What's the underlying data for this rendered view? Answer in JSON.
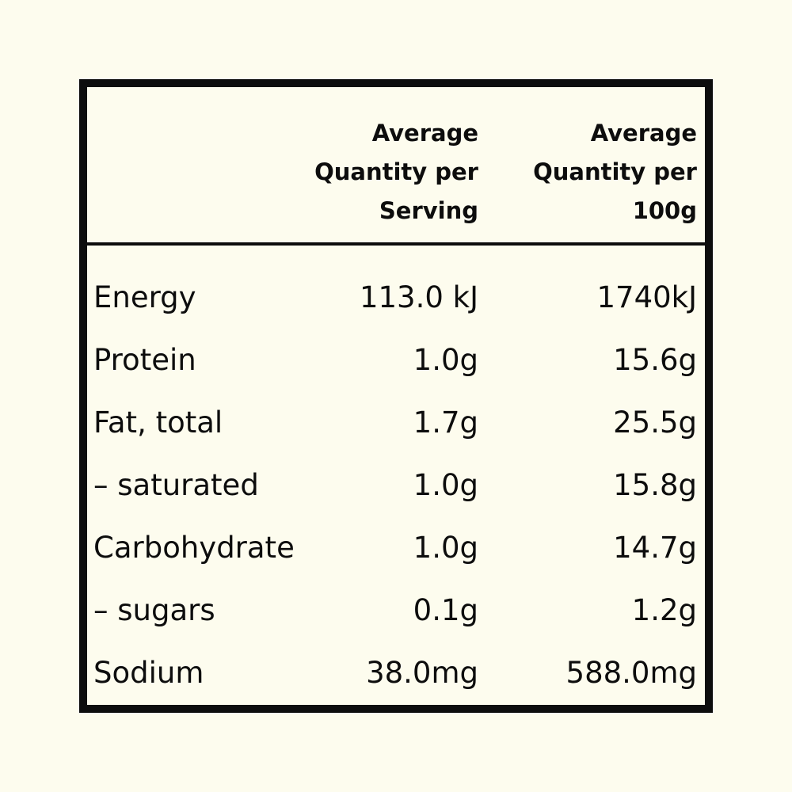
{
  "header": {
    "serving_lines": [
      "Average",
      "Quantity per",
      "Serving"
    ],
    "per100_lines": [
      "Average",
      "Quantity per",
      "100g"
    ]
  },
  "rows": [
    {
      "nutrient": "Energy",
      "per_serving": "113.0 kJ",
      "per_100g": "1740kJ"
    },
    {
      "nutrient": "Protein",
      "per_serving": "1.0g",
      "per_100g": "15.6g"
    },
    {
      "nutrient": "Fat, total",
      "per_serving": "1.7g",
      "per_100g": "25.5g"
    },
    {
      "nutrient": "– saturated",
      "per_serving": "1.0g",
      "per_100g": "15.8g"
    },
    {
      "nutrient": "Carbohydrate",
      "per_serving": "1.0g",
      "per_100g": "14.7g"
    },
    {
      "nutrient": "– sugars",
      "per_serving": "0.1g",
      "per_100g": "1.2g"
    },
    {
      "nutrient": "Sodium",
      "per_serving": "38.0mg",
      "per_100g": "588.0mg"
    }
  ],
  "colors": {
    "background": "#fdfcee",
    "ink": "#0d0d0d"
  }
}
